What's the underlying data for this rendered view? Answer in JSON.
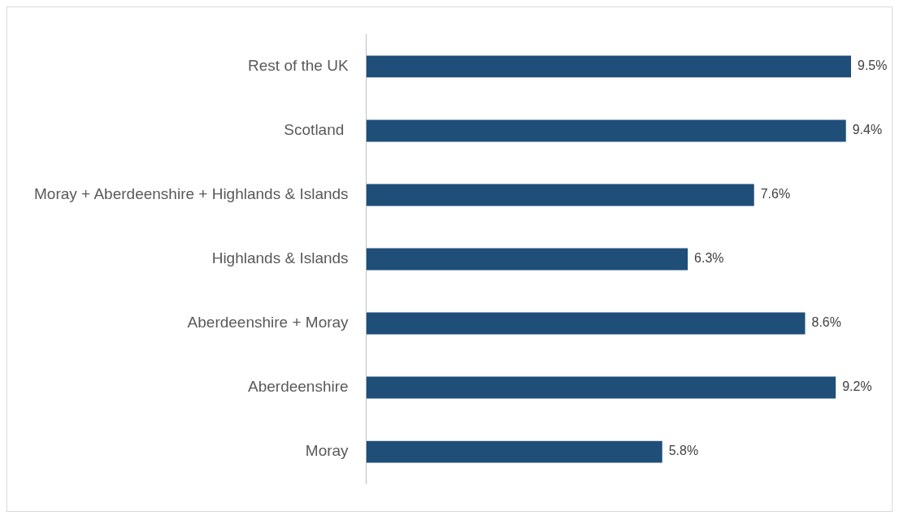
{
  "chart_data": {
    "type": "bar",
    "orientation": "horizontal",
    "categories": [
      "Rest of the UK",
      "Scotland ",
      "Moray + Aberdeenshire + Highlands & Islands",
      "Highlands & Islands",
      "Aberdeenshire + Moray",
      "Aberdeenshire",
      "Moray"
    ],
    "values": [
      9.5,
      9.4,
      7.6,
      6.3,
      8.6,
      9.2,
      5.8
    ],
    "value_labels": [
      "9.5%",
      "9.4%",
      "7.6%",
      "6.3%",
      "8.6%",
      "9.2%",
      "5.8%"
    ],
    "color": "#1f4e79",
    "tick_labels": "y"
  }
}
